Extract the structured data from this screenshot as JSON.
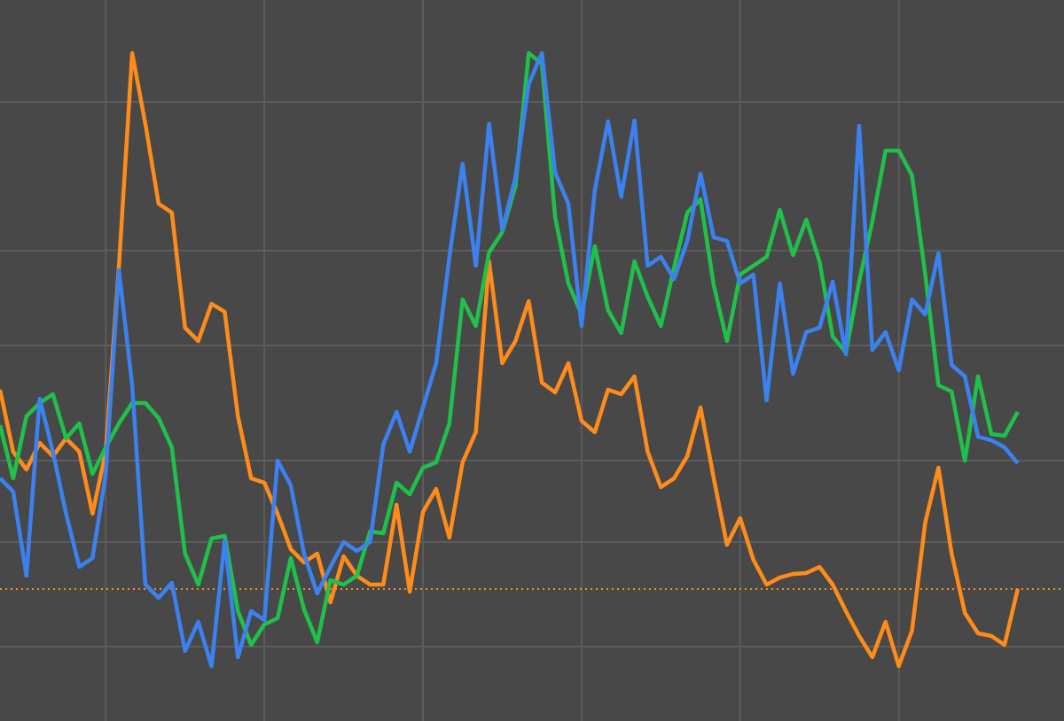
{
  "chart_data": {
    "type": "line",
    "x": [
      0,
      1,
      2,
      3,
      4,
      5,
      6,
      7,
      8,
      9,
      10,
      11,
      12,
      13,
      14,
      15,
      16,
      17,
      18,
      19,
      20,
      21,
      22,
      23,
      24,
      25,
      26,
      27,
      28,
      29,
      30,
      31,
      32,
      33,
      34,
      35,
      36,
      37,
      38,
      39,
      40,
      41,
      42,
      43,
      44,
      45,
      46,
      47,
      48,
      49,
      50,
      51,
      52,
      53,
      54,
      55,
      56,
      57,
      58,
      59,
      60,
      61,
      62,
      63,
      64,
      65,
      66,
      67,
      68,
      69,
      70,
      71,
      72,
      73,
      74,
      75,
      76,
      77
    ],
    "series": [
      {
        "color": "#ff8c1a",
        "values": [
          440,
          510,
          530,
          500,
          515,
          495,
          510,
          580,
          510,
          300,
          60,
          140,
          230,
          240,
          370,
          385,
          343,
          352,
          470,
          540,
          545,
          580,
          620,
          635,
          625,
          680,
          628,
          650,
          660,
          660,
          570,
          668,
          578,
          552,
          607,
          522,
          488,
          295,
          410,
          385,
          340,
          432,
          443,
          410,
          475,
          488,
          440,
          445,
          425,
          510,
          550,
          540,
          515,
          460,
          540,
          615,
          585,
          632,
          660,
          652,
          648,
          647,
          640,
          660,
          690,
          718,
          742,
          702,
          752,
          712,
          590,
          528,
          625,
          692,
          715,
          718,
          728,
          665
        ]
      },
      {
        "color": "#1fc14a",
        "values": [
          480,
          540,
          470,
          455,
          445,
          495,
          478,
          535,
          505,
          478,
          455,
          455,
          472,
          505,
          625,
          660,
          608,
          605,
          690,
          728,
          705,
          698,
          630,
          688,
          725,
          655,
          660,
          650,
          600,
          602,
          545,
          558,
          528,
          522,
          478,
          338,
          368,
          285,
          262,
          210,
          60,
          72,
          245,
          320,
          355,
          278,
          350,
          376,
          295,
          335,
          368,
          302,
          240,
          225,
          322,
          385,
          310,
          300,
          290,
          237,
          288,
          248,
          295,
          380,
          398,
          318,
          250,
          170,
          170,
          198,
          310,
          435,
          442,
          520,
          425,
          490,
          492,
          465
        ]
      },
      {
        "color": "#3b82f0",
        "values": [
          540,
          555,
          650,
          450,
          510,
          580,
          640,
          630,
          535,
          305,
          435,
          660,
          675,
          658,
          735,
          702,
          752,
          610,
          742,
          690,
          700,
          520,
          548,
          625,
          670,
          640,
          612,
          622,
          612,
          502,
          465,
          510,
          460,
          410,
          290,
          185,
          300,
          140,
          260,
          200,
          95,
          60,
          195,
          230,
          368,
          215,
          137,
          222,
          136,
          300,
          290,
          315,
          272,
          196,
          268,
          272,
          320,
          310,
          452,
          320,
          422,
          375,
          370,
          318,
          400,
          142,
          395,
          375,
          418,
          338,
          355,
          286,
          412,
          425,
          493,
          497,
          505,
          523
        ]
      }
    ],
    "xlim": [
      0,
      80.5
    ],
    "xticks": [
      8,
      20,
      32,
      44,
      56,
      68
    ],
    "ylim": [
      814,
      0
    ],
    "yticks": [
      115,
      283,
      390,
      520,
      612,
      730
    ],
    "grid": true,
    "reference_line": {
      "value": 665,
      "color": "#ff8c1a"
    }
  }
}
